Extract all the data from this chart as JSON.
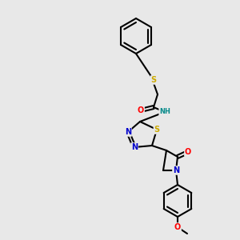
{
  "background_color": "#e8e8e8",
  "line_color": "#000000",
  "bond_width": 1.5,
  "figsize": [
    3.0,
    3.0
  ],
  "dpi": 100,
  "colors": {
    "S": "#ccaa00",
    "O": "#ff0000",
    "N": "#0000cc",
    "NH": "#008888",
    "C": "#000000"
  }
}
